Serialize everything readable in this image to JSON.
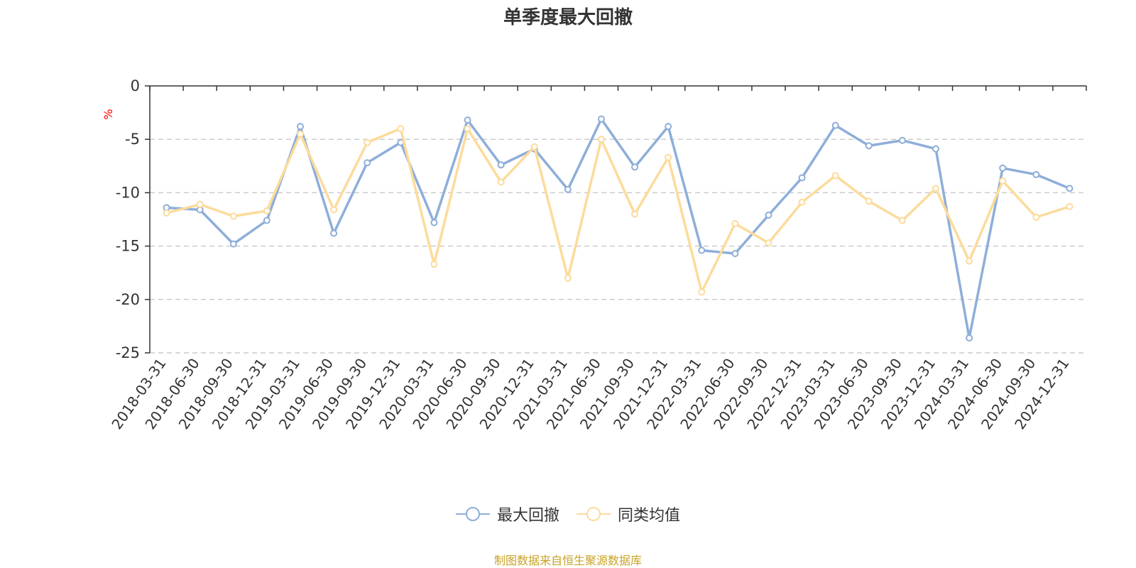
{
  "title": "单季度最大回撤",
  "source_note": "制图数据来自恒生聚源数据库",
  "colors": {
    "series1": "#8eaed9",
    "series2": "#fcdb9b",
    "ylabel": "#ff0000",
    "source": "#c9a227"
  },
  "chart_data": {
    "type": "line",
    "title": "单季度最大回撤",
    "ylabel": "%",
    "xlabel": "",
    "ylim": [
      -25,
      0
    ],
    "yticks": [
      0,
      -5,
      -10,
      -15,
      -20,
      -25
    ],
    "grid": true,
    "legend_position": "bottom-center",
    "x": [
      "2018-03-31",
      "2018-06-30",
      "2018-09-30",
      "2018-12-31",
      "2019-03-31",
      "2019-06-30",
      "2019-09-30",
      "2019-12-31",
      "2020-03-31",
      "2020-06-30",
      "2020-09-30",
      "2020-12-31",
      "2021-03-31",
      "2021-06-30",
      "2021-09-30",
      "2021-12-31",
      "2022-03-31",
      "2022-06-30",
      "2022-09-30",
      "2022-12-31",
      "2023-03-31",
      "2023-06-30",
      "2023-09-30",
      "2023-12-31",
      "2024-03-31",
      "2024-06-30",
      "2024-09-30",
      "2024-12-31"
    ],
    "series": [
      {
        "name": "最大回撤",
        "values": [
          -11.4,
          -11.6,
          -14.8,
          -12.6,
          -3.8,
          -13.8,
          -7.2,
          -5.3,
          -12.8,
          -3.2,
          -7.4,
          -5.9,
          -9.7,
          -3.1,
          -7.6,
          -3.8,
          -15.4,
          -15.7,
          -12.1,
          -8.6,
          -3.7,
          -5.6,
          -5.1,
          -5.9,
          -23.6,
          -7.7,
          -8.3,
          -9.6
        ]
      },
      {
        "name": "同类均值",
        "values": [
          -11.9,
          -11.1,
          -12.2,
          -11.7,
          -4.5,
          -11.6,
          -5.3,
          -4.0,
          -16.7,
          -4.0,
          -9.0,
          -5.7,
          -18.0,
          -5.0,
          -12.0,
          -6.7,
          -19.3,
          -12.9,
          -14.7,
          -10.9,
          -8.4,
          -10.8,
          -12.6,
          -9.6,
          -16.4,
          -8.9,
          -12.3,
          -11.3
        ]
      }
    ]
  }
}
